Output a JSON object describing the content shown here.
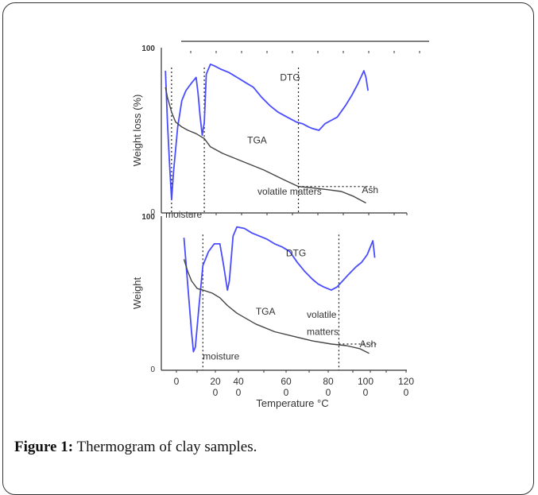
{
  "caption": {
    "label": "Figure 1:",
    "text": "Thermogram of clay samples."
  },
  "colors": {
    "dtg": "#4a4cff",
    "tga": "#444444",
    "guide": "#222222"
  },
  "chart_data": [
    {
      "type": "line",
      "ylabel": "Weight loss (%)",
      "yticks": [
        "100",
        "0"
      ],
      "ylim": [
        0,
        100
      ],
      "xlim": [
        0,
        120
      ],
      "series": [
        {
          "name": "DTG",
          "values": [
            [
              2,
              86
            ],
            [
              3,
              55
            ],
            [
              4,
              30
            ],
            [
              5,
              8
            ],
            [
              6,
              25
            ],
            [
              8,
              52
            ],
            [
              10,
              68
            ],
            [
              12,
              74
            ],
            [
              15,
              79
            ],
            [
              17,
              82
            ],
            [
              18,
              72
            ],
            [
              19,
              58
            ],
            [
              20,
              47
            ],
            [
              21,
              55
            ],
            [
              22,
              84
            ],
            [
              24,
              90
            ],
            [
              26,
              89
            ],
            [
              29,
              87
            ],
            [
              33,
              85
            ],
            [
              37,
              82
            ],
            [
              41,
              79
            ],
            [
              45,
              76
            ],
            [
              49,
              70
            ],
            [
              53,
              65
            ],
            [
              57,
              61
            ],
            [
              60,
              59
            ],
            [
              63,
              57
            ],
            [
              66,
              55
            ],
            [
              69,
              54
            ],
            [
              72,
              52
            ],
            [
              74,
              51
            ],
            [
              77,
              50
            ],
            [
              80,
              54
            ],
            [
              83,
              56
            ],
            [
              86,
              58
            ],
            [
              90,
              65
            ],
            [
              93,
              71
            ],
            [
              96,
              78
            ],
            [
              99,
              86
            ],
            [
              100,
              82
            ],
            [
              101,
              74
            ]
          ]
        },
        {
          "name": "TGA",
          "values": [
            [
              2,
              76
            ],
            [
              3,
              70
            ],
            [
              5,
              61
            ],
            [
              7,
              55
            ],
            [
              10,
              52
            ],
            [
              13,
              50
            ],
            [
              17,
              48
            ],
            [
              21,
              45
            ],
            [
              24,
              40
            ],
            [
              30,
              36
            ],
            [
              40,
              31
            ],
            [
              50,
              26
            ],
            [
              60,
              20
            ],
            [
              67,
              16
            ],
            [
              75,
              15
            ],
            [
              82,
              14
            ],
            [
              88,
              13
            ],
            [
              94,
              10
            ],
            [
              100,
              6
            ]
          ]
        }
      ],
      "annotations": [
        {
          "text": "DTG",
          "x": 58,
          "y": 80
        },
        {
          "text": "TGA",
          "x": 42,
          "y": 42
        },
        {
          "text": "volatile matters",
          "x": 47,
          "y": 11
        },
        {
          "text": "moisture",
          "x": 2,
          "y": -3
        },
        {
          "text": "Ash",
          "x": 98,
          "y": 12
        }
      ],
      "guides": {
        "vertical": [
          5,
          21,
          67
        ],
        "horizontal": {
          "y": 16,
          "from": 67,
          "to": 104
        }
      }
    },
    {
      "type": "line",
      "ylabel": "Weight",
      "yticks": [
        "100",
        "0"
      ],
      "ylim": [
        0,
        100
      ],
      "xlim": [
        -10,
        120
      ],
      "xticks": [
        {
          "line1": "0",
          "line2": ""
        },
        {
          "line1": "20",
          "line2": "0"
        },
        {
          "line1": "40",
          "line2": "0"
        },
        {
          "line1": "60",
          "line2": "0"
        },
        {
          "line1": "80",
          "line2": "0"
        },
        {
          "line1": "100",
          "line2": "0"
        },
        {
          "line1": "120",
          "line2": "0"
        }
      ],
      "xlabel": "Temperature °C",
      "series": [
        {
          "name": "DTG",
          "values": [
            [
              2,
              86
            ],
            [
              4,
              55
            ],
            [
              6,
              25
            ],
            [
              7,
              12
            ],
            [
              8,
              15
            ],
            [
              10,
              42
            ],
            [
              12,
              68
            ],
            [
              15,
              77
            ],
            [
              18,
              82
            ],
            [
              21,
              82
            ],
            [
              23,
              68
            ],
            [
              25,
              52
            ],
            [
              26,
              58
            ],
            [
              28,
              87
            ],
            [
              30,
              93
            ],
            [
              34,
              92
            ],
            [
              38,
              89
            ],
            [
              42,
              87
            ],
            [
              46,
              85
            ],
            [
              50,
              82
            ],
            [
              54,
              80
            ],
            [
              58,
              77
            ],
            [
              62,
              70
            ],
            [
              66,
              64
            ],
            [
              70,
              59
            ],
            [
              73,
              56
            ],
            [
              76,
              54
            ],
            [
              80,
              52
            ],
            [
              83,
              54
            ],
            [
              86,
              58
            ],
            [
              89,
              62
            ],
            [
              93,
              67
            ],
            [
              96,
              70
            ],
            [
              99,
              75
            ],
            [
              102,
              84
            ],
            [
              103,
              73
            ]
          ]
        },
        {
          "name": "TGA",
          "values": [
            [
              2,
              72
            ],
            [
              4,
              64
            ],
            [
              6,
              58
            ],
            [
              9,
              53
            ],
            [
              12,
              52
            ],
            [
              17,
              50
            ],
            [
              21,
              47
            ],
            [
              25,
              42
            ],
            [
              30,
              37
            ],
            [
              40,
              30
            ],
            [
              50,
              25
            ],
            [
              60,
              22
            ],
            [
              70,
              19
            ],
            [
              80,
              17
            ],
            [
              88,
              16
            ],
            [
              95,
              14
            ],
            [
              100,
              11
            ]
          ]
        }
      ],
      "annotations": [
        {
          "text": "DTG",
          "x": 56,
          "y": 74
        },
        {
          "text": "TGA",
          "x": 40,
          "y": 36
        },
        {
          "text": "volatile",
          "x": 67,
          "y": 34
        },
        {
          "text": "matters",
          "x": 67,
          "y": 23
        },
        {
          "text": "moisture",
          "x": 12,
          "y": 7
        },
        {
          "text": "Ash",
          "x": 95,
          "y": 15
        }
      ],
      "guides": {
        "vertical": [
          12,
          84
        ],
        "horizontal": {
          "y": 17,
          "from": 84,
          "to": 104
        }
      }
    }
  ]
}
